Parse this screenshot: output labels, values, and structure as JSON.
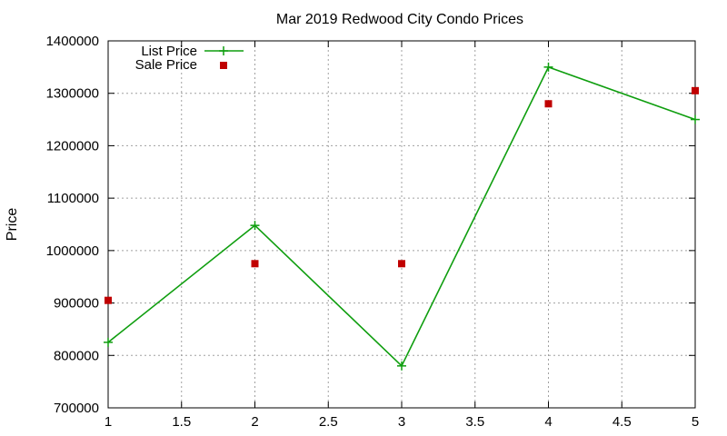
{
  "chart_data": {
    "type": "line",
    "title": "Mar 2019 Redwood City Condo Prices",
    "xlabel": "",
    "ylabel": "Price",
    "xlim": [
      1,
      5
    ],
    "ylim": [
      700000,
      1400000
    ],
    "xticks": [
      "1",
      "1.5",
      "2",
      "2.5",
      "3",
      "3.5",
      "4",
      "4.5",
      "5"
    ],
    "yticks": [
      "700000",
      "800000",
      "900000",
      "1000000",
      "1100000",
      "1200000",
      "1300000",
      "1400000"
    ],
    "grid": true,
    "legend_position": "top-left",
    "series": [
      {
        "name": "List Price",
        "style": "line-with-plus-markers",
        "color": "#0f9e0f",
        "x": [
          1,
          2,
          3,
          4,
          5
        ],
        "values": [
          825000,
          1048000,
          780000,
          1350000,
          1250000
        ]
      },
      {
        "name": "Sale Price",
        "style": "square-markers",
        "color": "#c00000",
        "x": [
          1,
          2,
          3,
          4,
          5
        ],
        "values": [
          905000,
          975000,
          975000,
          1280000,
          1305000
        ]
      }
    ]
  }
}
